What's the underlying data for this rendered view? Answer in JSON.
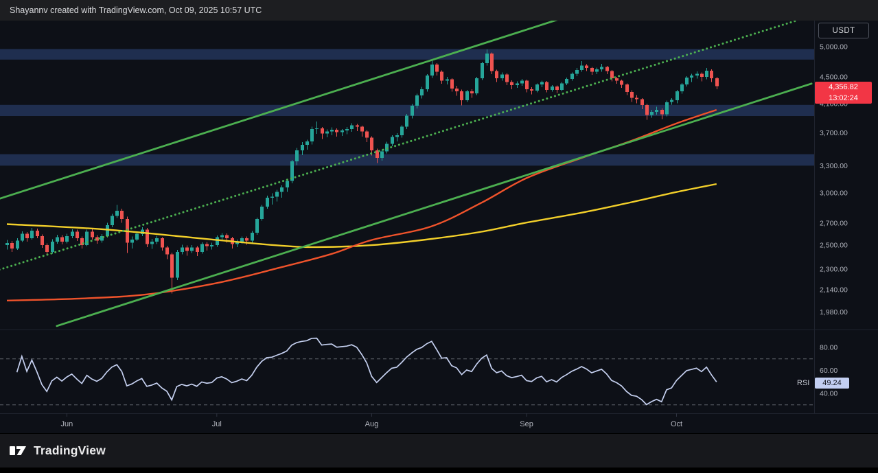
{
  "topbar": {
    "attribution": "Shayannv created with TradingView.com, Oct 09, 2025 10:57 UTC"
  },
  "footer": {
    "brand": "TradingView"
  },
  "colors": {
    "up": "#26a69a",
    "down": "#ef5350",
    "channel_green": "#4caf50",
    "ma_orange": "#f0532b",
    "ma_yellow": "#f2cf2a",
    "rsi_line": "#c5d0f0",
    "band_blue": "#24365e",
    "badge_red": "#f23645",
    "rsi_badge_bg": "#c3cff2",
    "rsi_badge_text": "#10131c",
    "axis_text": "#b2b5be",
    "separator": "#1f232e"
  },
  "chart_data": {
    "type": "candlestick",
    "price_scale": {
      "currency": "USDT",
      "mode": "logarithmic",
      "last_price": 4356.82,
      "last_price_label": "4,356.82",
      "countdown": "13:02:24",
      "ticks": [
        {
          "v": 5000,
          "label": "5,000.00"
        },
        {
          "v": 4500,
          "label": "4,500.00"
        },
        {
          "v": 4100,
          "label": "4,100.00"
        },
        {
          "v": 3700,
          "label": "3,700.00"
        },
        {
          "v": 3300,
          "label": "3,300.00"
        },
        {
          "v": 3000,
          "label": "3,000.00"
        },
        {
          "v": 2700,
          "label": "2,700.00"
        },
        {
          "v": 2500,
          "label": "2,500.00"
        },
        {
          "v": 2300,
          "label": "2,300.00"
        },
        {
          "v": 2140,
          "label": "2,140.00"
        },
        {
          "v": 1980,
          "label": "1,980.00"
        }
      ]
    },
    "rsi": {
      "name": "RSI",
      "period": 14,
      "current": 49.24,
      "current_label": "49.24",
      "guides": [
        70,
        30
      ],
      "ticks": [
        {
          "v": 80,
          "label": "80.00"
        },
        {
          "v": 60,
          "label": "60.00"
        },
        {
          "v": 40,
          "label": "40.00"
        }
      ]
    },
    "time_axis": {
      "months": [
        {
          "label": "Jun",
          "index": 12
        },
        {
          "label": "Jul",
          "index": 42
        },
        {
          "label": "Aug",
          "index": 73
        },
        {
          "label": "Sep",
          "index": 104
        },
        {
          "label": "Oct",
          "index": 134
        }
      ]
    },
    "sr_bands": [
      [
        4780,
        4960
      ],
      [
        3925,
        4080
      ],
      [
        3300,
        3435
      ]
    ],
    "trendlines": {
      "channel_upper": [
        [
          -1.5,
          2940
        ],
        [
          111,
          5520
        ]
      ],
      "channel_lower": [
        [
          10,
          1885
        ],
        [
          161,
          4395
        ]
      ],
      "channel_median_dotted": [
        [
          -1.5,
          2295
        ],
        [
          158,
          5477
        ]
      ]
    },
    "ma_orange": [
      [
        0,
        2060
      ],
      [
        15,
        2075
      ],
      [
        28,
        2105
      ],
      [
        42,
        2190
      ],
      [
        55,
        2315
      ],
      [
        65,
        2425
      ],
      [
        73,
        2545
      ],
      [
        85,
        2670
      ],
      [
        95,
        2900
      ],
      [
        104,
        3160
      ],
      [
        115,
        3390
      ],
      [
        125,
        3600
      ],
      [
        134,
        3825
      ],
      [
        142,
        4010
      ]
    ],
    "ma_yellow": [
      [
        0,
        2690
      ],
      [
        20,
        2640
      ],
      [
        42,
        2545
      ],
      [
        55,
        2495
      ],
      [
        62,
        2483
      ],
      [
        73,
        2500
      ],
      [
        85,
        2555
      ],
      [
        95,
        2620
      ],
      [
        104,
        2705
      ],
      [
        115,
        2800
      ],
      [
        125,
        2905
      ],
      [
        134,
        3010
      ],
      [
        142,
        3095
      ]
    ],
    "ohlc": [
      [
        2500,
        2545,
        2462,
        2520
      ],
      [
        2520,
        2538,
        2441,
        2470
      ],
      [
        2470,
        2562,
        2458,
        2540
      ],
      [
        2540,
        2622,
        2528,
        2600
      ],
      [
        2600,
        2618,
        2532,
        2560
      ],
      [
        2560,
        2655,
        2549,
        2630
      ],
      [
        2630,
        2648,
        2561,
        2580
      ],
      [
        2580,
        2596,
        2478,
        2500
      ],
      [
        2500,
        2516,
        2415,
        2440
      ],
      [
        2440,
        2552,
        2428,
        2530
      ],
      [
        2530,
        2592,
        2512,
        2570
      ],
      [
        2570,
        2588,
        2505,
        2530
      ],
      [
        2530,
        2601,
        2516,
        2580
      ],
      [
        2580,
        2642,
        2561,
        2620
      ],
      [
        2620,
        2638,
        2537,
        2560
      ],
      [
        2560,
        2576,
        2471,
        2500
      ],
      [
        2500,
        2638,
        2492,
        2620
      ],
      [
        2620,
        2641,
        2548,
        2570
      ],
      [
        2570,
        2589,
        2512,
        2540
      ],
      [
        2540,
        2599,
        2521,
        2580
      ],
      [
        2580,
        2702,
        2566,
        2680
      ],
      [
        2680,
        2788,
        2662,
        2770
      ],
      [
        2770,
        2878,
        2748,
        2820
      ],
      [
        2820,
        2841,
        2702,
        2740
      ],
      [
        2740,
        2762,
        2432,
        2520
      ],
      [
        2520,
        2578,
        2471,
        2550
      ],
      [
        2550,
        2622,
        2536,
        2600
      ],
      [
        2600,
        2661,
        2581,
        2640
      ],
      [
        2640,
        2655,
        2482,
        2510
      ],
      [
        2510,
        2556,
        2468,
        2530
      ],
      [
        2530,
        2582,
        2508,
        2560
      ],
      [
        2560,
        2571,
        2452,
        2480
      ],
      [
        2480,
        2495,
        2381,
        2420
      ],
      [
        2420,
        2436,
        2111,
        2230
      ],
      [
        2230,
        2458,
        2212,
        2440
      ],
      [
        2440,
        2502,
        2421,
        2480
      ],
      [
        2480,
        2496,
        2408,
        2450
      ],
      [
        2450,
        2501,
        2432,
        2480
      ],
      [
        2480,
        2492,
        2406,
        2440
      ],
      [
        2440,
        2526,
        2428,
        2510
      ],
      [
        2510,
        2528,
        2452,
        2490
      ],
      [
        2490,
        2522,
        2461,
        2500
      ],
      [
        2500,
        2585,
        2486,
        2570
      ],
      [
        2570,
        2608,
        2541,
        2590
      ],
      [
        2590,
        2605,
        2522,
        2560
      ],
      [
        2560,
        2572,
        2471,
        2510
      ],
      [
        2510,
        2548,
        2482,
        2530
      ],
      [
        2530,
        2578,
        2511,
        2560
      ],
      [
        2560,
        2575,
        2502,
        2540
      ],
      [
        2540,
        2628,
        2522,
        2610
      ],
      [
        2610,
        2752,
        2592,
        2740
      ],
      [
        2740,
        2878,
        2722,
        2860
      ],
      [
        2860,
        2971,
        2838,
        2950
      ],
      [
        2950,
        2998,
        2882,
        2960
      ],
      [
        2960,
        3032,
        2911,
        3010
      ],
      [
        3010,
        3082,
        2952,
        3060
      ],
      [
        3060,
        3151,
        3012,
        3130
      ],
      [
        3130,
        3368,
        3101,
        3350
      ],
      [
        3350,
        3512,
        3305,
        3480
      ],
      [
        3480,
        3581,
        3422,
        3550
      ],
      [
        3550,
        3612,
        3488,
        3590
      ],
      [
        3590,
        3781,
        3552,
        3750
      ],
      [
        3750,
        3848,
        3688,
        3760
      ],
      [
        3760,
        3778,
        3621,
        3690
      ],
      [
        3690,
        3745,
        3642,
        3720
      ],
      [
        3720,
        3772,
        3671,
        3740
      ],
      [
        3740,
        3758,
        3652,
        3710
      ],
      [
        3710,
        3752,
        3661,
        3730
      ],
      [
        3730,
        3775,
        3682,
        3750
      ],
      [
        3750,
        3828,
        3712,
        3800
      ],
      [
        3800,
        3818,
        3722,
        3780
      ],
      [
        3780,
        3795,
        3652,
        3720
      ],
      [
        3720,
        3738,
        3582,
        3640
      ],
      [
        3640,
        3655,
        3421,
        3480
      ],
      [
        3480,
        3502,
        3332,
        3390
      ],
      [
        3390,
        3492,
        3358,
        3470
      ],
      [
        3470,
        3588,
        3442,
        3560
      ],
      [
        3560,
        3672,
        3531,
        3650
      ],
      [
        3650,
        3695,
        3592,
        3670
      ],
      [
        3670,
        3802,
        3641,
        3780
      ],
      [
        3780,
        3952,
        3748,
        3930
      ],
      [
        3930,
        4092,
        3891,
        4070
      ],
      [
        4070,
        4242,
        4032,
        4220
      ],
      [
        4220,
        4348,
        4171,
        4310
      ],
      [
        4310,
        4542,
        4272,
        4520
      ],
      [
        4520,
        4758,
        4482,
        4700
      ],
      [
        4700,
        4722,
        4521,
        4580
      ],
      [
        4580,
        4602,
        4392,
        4440
      ],
      [
        4440,
        4502,
        4381,
        4460
      ],
      [
        4460,
        4478,
        4271,
        4320
      ],
      [
        4320,
        4362,
        4212,
        4280
      ],
      [
        4280,
        4302,
        4072,
        4150
      ],
      [
        4150,
        4298,
        4121,
        4280
      ],
      [
        4280,
        4312,
        4181,
        4250
      ],
      [
        4250,
        4502,
        4222,
        4480
      ],
      [
        4480,
        4742,
        4452,
        4720
      ],
      [
        4720,
        4952,
        4681,
        4880
      ],
      [
        4880,
        4898,
        4542,
        4590
      ],
      [
        4590,
        4612,
        4421,
        4480
      ],
      [
        4480,
        4568,
        4442,
        4540
      ],
      [
        4540,
        4558,
        4372,
        4420
      ],
      [
        4420,
        4448,
        4311,
        4370
      ],
      [
        4370,
        4432,
        4331,
        4400
      ],
      [
        4400,
        4468,
        4361,
        4440
      ],
      [
        4440,
        4458,
        4262,
        4310
      ],
      [
        4310,
        4342,
        4231,
        4290
      ],
      [
        4290,
        4398,
        4262,
        4380
      ],
      [
        4380,
        4442,
        4341,
        4420
      ],
      [
        4420,
        4438,
        4262,
        4300
      ],
      [
        4300,
        4372,
        4271,
        4350
      ],
      [
        4350,
        4368,
        4252,
        4300
      ],
      [
        4300,
        4418,
        4281,
        4400
      ],
      [
        4400,
        4488,
        4371,
        4470
      ],
      [
        4470,
        4568,
        4441,
        4550
      ],
      [
        4550,
        4642,
        4512,
        4610
      ],
      [
        4610,
        4752,
        4582,
        4680
      ],
      [
        4680,
        4702,
        4591,
        4640
      ],
      [
        4640,
        4658,
        4531,
        4580
      ],
      [
        4580,
        4648,
        4542,
        4620
      ],
      [
        4620,
        4708,
        4581,
        4660
      ],
      [
        4660,
        4678,
        4542,
        4590
      ],
      [
        4590,
        4608,
        4432,
        4480
      ],
      [
        4480,
        4502,
        4391,
        4440
      ],
      [
        4440,
        4458,
        4332,
        4380
      ],
      [
        4380,
        4398,
        4222,
        4270
      ],
      [
        4270,
        4292,
        4122,
        4180
      ],
      [
        4180,
        4221,
        4102,
        4160
      ],
      [
        4160,
        4178,
        4022,
        4080
      ],
      [
        4080,
        4098,
        3872,
        3940
      ],
      [
        3940,
        4012,
        3901,
        3980
      ],
      [
        3980,
        4052,
        3942,
        4010
      ],
      [
        4010,
        4028,
        3882,
        3950
      ],
      [
        3950,
        4142,
        3922,
        4120
      ],
      [
        4120,
        4178,
        4081,
        4150
      ],
      [
        4150,
        4298,
        4102,
        4280
      ],
      [
        4280,
        4402,
        4242,
        4380
      ],
      [
        4380,
        4512,
        4352,
        4490
      ],
      [
        4490,
        4548,
        4422,
        4520
      ],
      [
        4520,
        4588,
        4471,
        4550
      ],
      [
        4550,
        4572,
        4432,
        4500
      ],
      [
        4500,
        4642,
        4462,
        4600
      ],
      [
        4600,
        4618,
        4421,
        4480
      ],
      [
        4480,
        4502,
        4311,
        4357
      ]
    ]
  }
}
